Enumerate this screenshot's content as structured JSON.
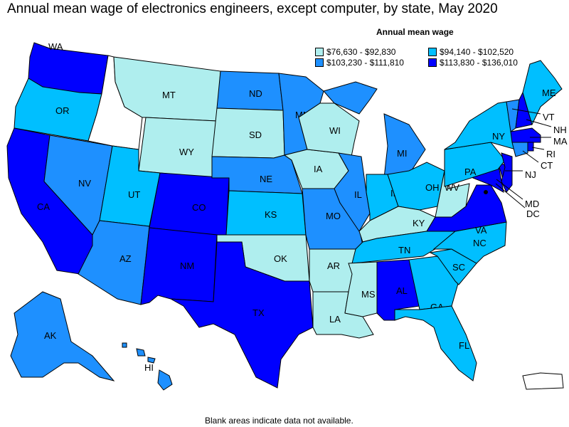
{
  "title": "Annual mean wage of electronics engineers, except computer, by state, May 2020",
  "legend": {
    "title": "Annual mean wage",
    "items": [
      {
        "label": "$76,630 - $92,830",
        "color": "#AFEEEE"
      },
      {
        "label": "$94,140 - $102,520",
        "color": "#00BFFF"
      },
      {
        "label": "$103,230 - $111,810",
        "color": "#1E90FF"
      },
      {
        "label": "$113,830 - $136,010",
        "color": "#0000FF"
      }
    ]
  },
  "note": "Blank areas indicate data not available.",
  "states": {
    "WA": {
      "label": "WA",
      "tier": 3
    },
    "OR": {
      "label": "OR",
      "tier": 1
    },
    "CA": {
      "label": "CA",
      "tier": 3
    },
    "NV": {
      "label": "NV",
      "tier": 2
    },
    "ID": {
      "label": "",
      "tier": null
    },
    "MT": {
      "label": "MT",
      "tier": 0
    },
    "WY": {
      "label": "WY",
      "tier": 0
    },
    "UT": {
      "label": "UT",
      "tier": 1
    },
    "AZ": {
      "label": "AZ",
      "tier": 2
    },
    "CO": {
      "label": "CO",
      "tier": 3
    },
    "NM": {
      "label": "NM",
      "tier": 3
    },
    "ND": {
      "label": "ND",
      "tier": 2
    },
    "SD": {
      "label": "SD",
      "tier": 0
    },
    "NE": {
      "label": "NE",
      "tier": 2
    },
    "KS": {
      "label": "KS",
      "tier": 1
    },
    "OK": {
      "label": "OK",
      "tier": 0
    },
    "TX": {
      "label": "TX",
      "tier": 3
    },
    "MN": {
      "label": "MN",
      "tier": 2
    },
    "IA": {
      "label": "IA",
      "tier": 0
    },
    "MO": {
      "label": "MO",
      "tier": 2
    },
    "AR": {
      "label": "AR",
      "tier": 0
    },
    "LA": {
      "label": "LA",
      "tier": 0
    },
    "WI": {
      "label": "WI",
      "tier": 0
    },
    "IL": {
      "label": "IL",
      "tier": 2
    },
    "MI": {
      "label": "MI",
      "tier": 2
    },
    "IN": {
      "label": "IN",
      "tier": 1
    },
    "OH": {
      "label": "OH",
      "tier": 1
    },
    "KY": {
      "label": "KY",
      "tier": 0
    },
    "TN": {
      "label": "TN",
      "tier": 1
    },
    "MS": {
      "label": "MS",
      "tier": 0
    },
    "AL": {
      "label": "AL",
      "tier": 3
    },
    "GA": {
      "label": "GA",
      "tier": 1
    },
    "FL": {
      "label": "FL",
      "tier": 1
    },
    "SC": {
      "label": "SC",
      "tier": 1
    },
    "NC": {
      "label": "NC",
      "tier": 1
    },
    "VA": {
      "label": "VA",
      "tier": 3
    },
    "WV": {
      "label": "WV",
      "tier": 0
    },
    "MD": {
      "label": "MD",
      "tier": 3
    },
    "DE": {
      "label": "",
      "tier": 3
    },
    "PA": {
      "label": "PA",
      "tier": 1
    },
    "NJ": {
      "label": "NJ",
      "tier": 3
    },
    "NY": {
      "label": "NY",
      "tier": 1
    },
    "VT": {
      "label": "VT",
      "tier": 2
    },
    "NH": {
      "label": "NH",
      "tier": 3
    },
    "MA": {
      "label": "MA",
      "tier": 3
    },
    "CT": {
      "label": "CT",
      "tier": 2
    },
    "RI": {
      "label": "RI",
      "tier": 3
    },
    "ME": {
      "label": "ME",
      "tier": 1
    },
    "AK": {
      "label": "AK",
      "tier": 2
    },
    "HI": {
      "label": "HI",
      "tier": 2
    },
    "DC": {
      "label": "DC",
      "tier": 3
    },
    "PR": {
      "label": "",
      "tier": null
    }
  }
}
